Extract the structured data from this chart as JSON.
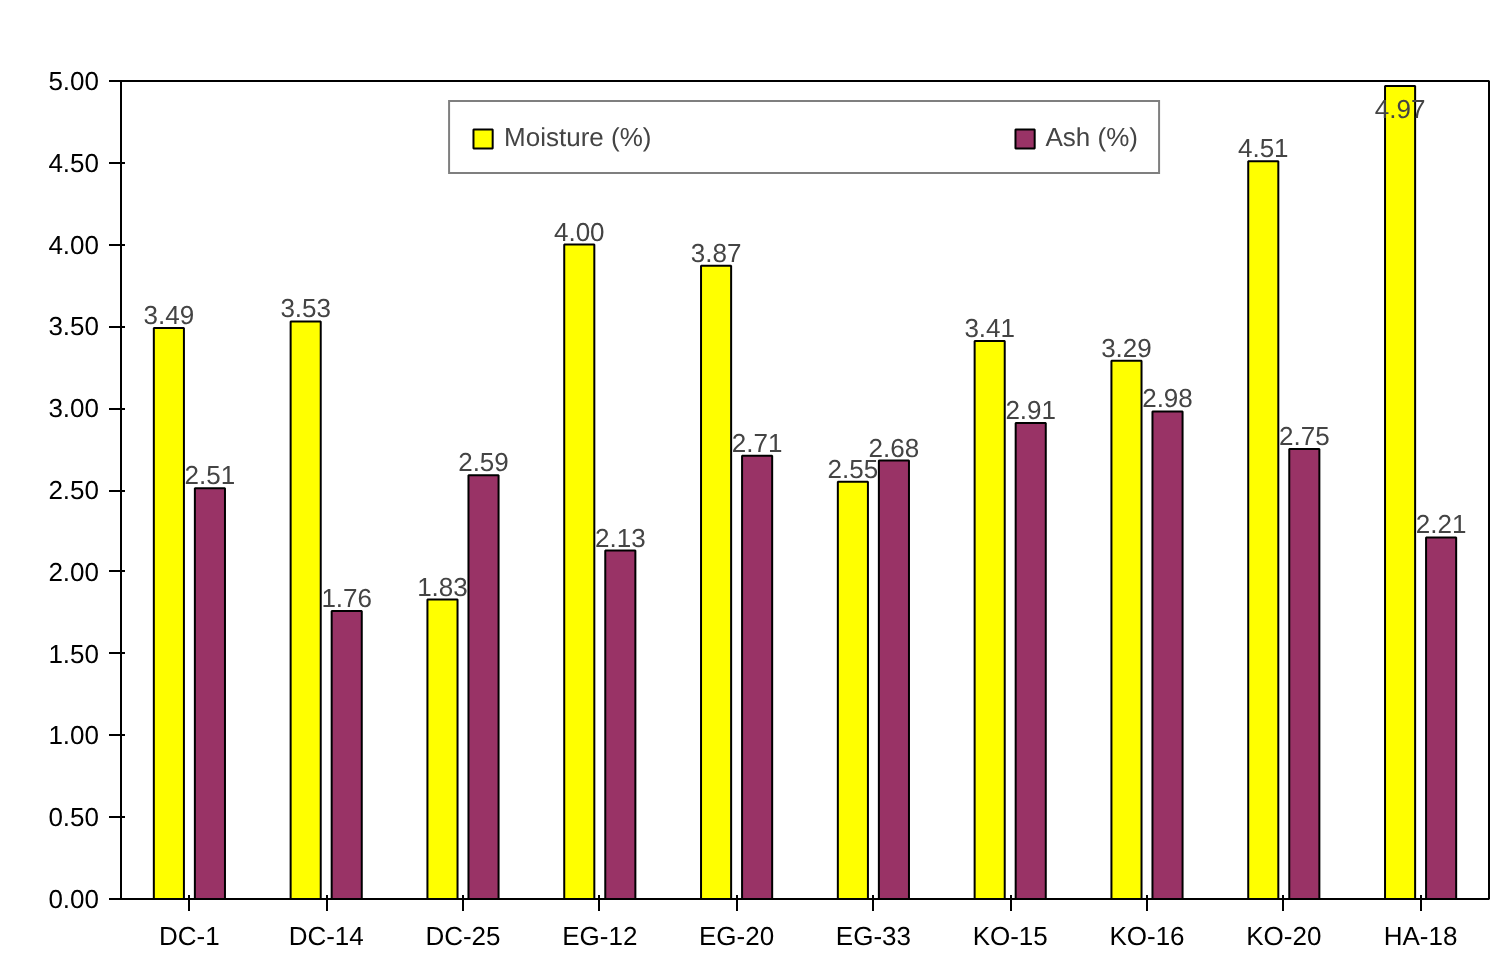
{
  "chart_data": {
    "type": "bar",
    "categories": [
      "DC-1",
      "DC-14",
      "DC-25",
      "EG-12",
      "EG-20",
      "EG-33",
      "KO-15",
      "KO-16",
      "KO-20",
      "HA-18"
    ],
    "series": [
      {
        "name": "Moisture (%)",
        "color": "#ffff00",
        "values": [
          3.49,
          3.53,
          1.83,
          4.0,
          3.87,
          2.55,
          3.41,
          3.29,
          4.51,
          4.97
        ],
        "value_labels": [
          "3.49",
          "3.53",
          "1.83",
          "4.00",
          "3.87",
          "2.55",
          "3.41",
          "3.29",
          "4.51",
          "4.97"
        ]
      },
      {
        "name": "Ash (%)",
        "color": "#993366",
        "values": [
          2.51,
          1.76,
          2.59,
          2.13,
          2.71,
          2.68,
          2.91,
          2.98,
          2.75,
          2.21
        ],
        "value_labels": [
          "2.51",
          "1.76",
          "2.59",
          "2.13",
          "2.71",
          "2.68",
          "2.91",
          "2.98",
          "2.75",
          "2.21"
        ]
      }
    ],
    "ylim": [
      0,
      5
    ],
    "yticks": [
      {
        "value": 0,
        "label": "0.00"
      },
      {
        "value": 0.5,
        "label": "0.50"
      },
      {
        "value": 1,
        "label": "1.00"
      },
      {
        "value": 1.5,
        "label": "1.50"
      },
      {
        "value": 2,
        "label": "2.00"
      },
      {
        "value": 2.5,
        "label": "2.50"
      },
      {
        "value": 3,
        "label": "3.00"
      },
      {
        "value": 3.5,
        "label": "3.50"
      },
      {
        "value": 4,
        "label": "4.00"
      },
      {
        "value": 4.5,
        "label": "4.50"
      },
      {
        "value": 5,
        "label": "5.00"
      }
    ],
    "legend": "top"
  }
}
